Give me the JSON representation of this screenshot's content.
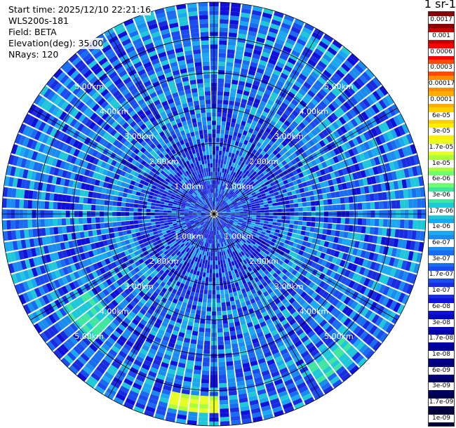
{
  "header": {
    "start_time": "Start time: 2025/12/10 22:21:16",
    "instrument": "WLS200s-181",
    "field": "Field: BETA",
    "elevation": "Elevation(deg): 35.00",
    "nrays": "NRays: 120"
  },
  "colorbar": {
    "title": "m-1 sr-1",
    "labels": [
      "0.0017",
      "0.001",
      "0.0006",
      "0.0003",
      "0.00017",
      "0.0001",
      "6e-05",
      "3e-05",
      "1.7e-05",
      "1e-05",
      "6e-06",
      "3e-06",
      "1.7e-06",
      "1e-06",
      "6e-07",
      "3e-07",
      "1.7e-07",
      "1e-07",
      "6e-08",
      "3e-08",
      "1.7e-08",
      "1e-08",
      "6e-09",
      "3e-09",
      "1.7e-09",
      "1e-09"
    ],
    "colors": [
      "#8b0000",
      "#c40000",
      "#ff0000",
      "#ff4a00",
      "#ff8c00",
      "#ffae00",
      "#ffd000",
      "#ffee00",
      "#e8ff24",
      "#a8ff3a",
      "#6dff6d",
      "#3fe6a0",
      "#1ec8d8",
      "#1aa8f0",
      "#1a8cf0",
      "#1a6cf0",
      "#1a4cf0",
      "#1a2ce0",
      "#1010d8",
      "#0808c0",
      "#0000a8",
      "#000090",
      "#000078",
      "#000060",
      "#00004a",
      "#000038"
    ]
  },
  "chart_data": {
    "type": "heatmap",
    "projection": "polar (PPI)",
    "field": "BETA",
    "units": "m-1 sr-1",
    "range_rings_km": [
      1.0,
      2.0,
      3.0,
      4.0,
      5.0
    ],
    "ring_labels": [
      "1.00km",
      "2.00km",
      "3.00km",
      "4.00km",
      "5.00km"
    ],
    "max_range_km": 6.0,
    "nrays": 120,
    "elevation_deg": 35.0,
    "colormap_scale": "log",
    "value_range": [
      1e-09,
      0.0017
    ],
    "dominant_value_range": [
      1e-08,
      1e-07
    ],
    "hotspots": [
      {
        "azimuth_deg": 185,
        "range_km": [
          5.1,
          5.6
        ],
        "value_range": [
          1e-06,
          1e-05
        ]
      },
      {
        "azimuth_deg": 230,
        "range_km": [
          4.0,
          5.0
        ],
        "value_range": [
          1e-07,
          3e-07
        ]
      },
      {
        "azimuth_deg": 140,
        "range_km": [
          5.0,
          5.6
        ],
        "value_range": [
          1e-07,
          3e-07
        ]
      }
    ]
  }
}
